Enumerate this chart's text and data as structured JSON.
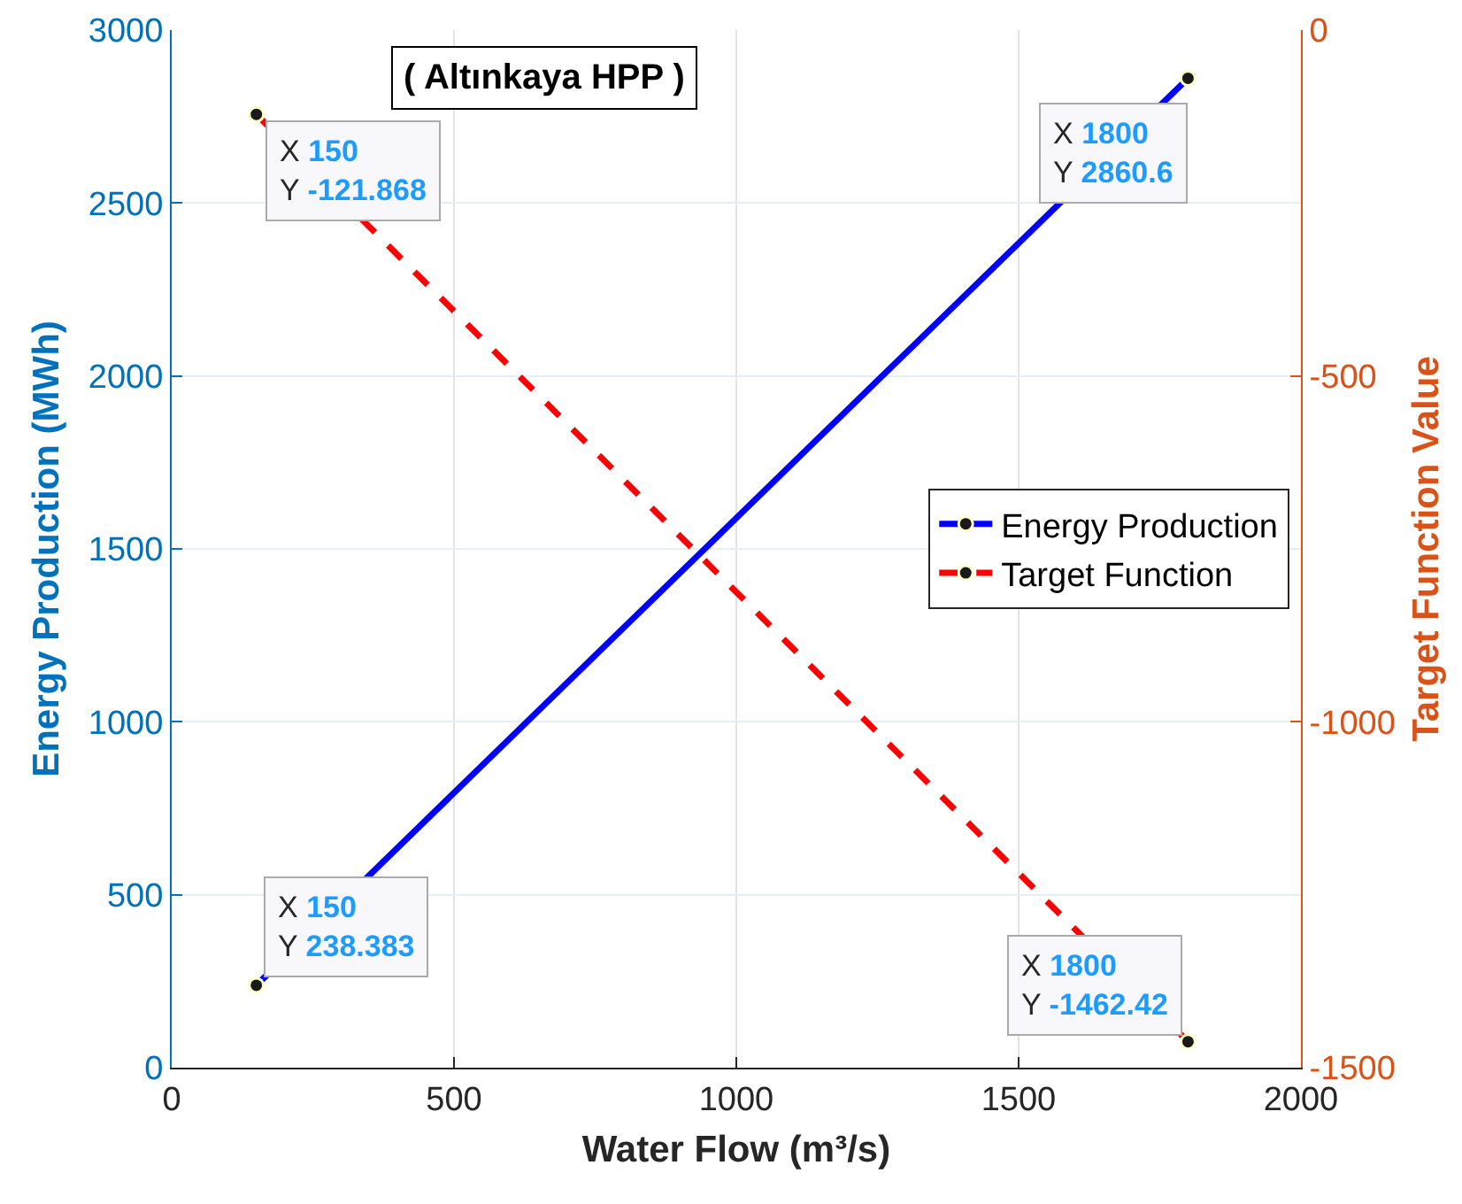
{
  "chart_data": {
    "type": "line",
    "title": "( Altınkaya HPP )",
    "xlabel": "Water Flow (m³/s)",
    "ylabel": "Energy Production (MWh)",
    "y2label": "Target Function Value",
    "x": [
      150,
      1800
    ],
    "series": [
      {
        "name": "Energy Production",
        "color": "#0000ff",
        "values": [
          238.383,
          2860.6
        ],
        "line_style": "solid"
      },
      {
        "name": "Target Function",
        "color": "#ff0000",
        "values": [
          -121.868,
          -1462.42
        ],
        "axis": "y2",
        "line_style": "dashed"
      }
    ],
    "xlim": [
      0,
      2000
    ],
    "xticks": [
      0,
      500,
      1000,
      1500,
      2000
    ],
    "ylim": [
      0,
      3000
    ],
    "yticks": [
      0,
      500,
      1000,
      1500,
      2000,
      2500,
      3000
    ],
    "y2lim": [
      -1500,
      0
    ],
    "y2ticks": [
      -1500,
      -1000,
      -500,
      0
    ],
    "annotations": [
      "X 150\nY -121.868",
      {
        "text": "X 1800\nY 2860.6",
        "x": 1800,
        "y": 2860.6
      },
      {
        "text": "X 150\nY 238.383",
        "x": 150,
        "y": 238.383
      },
      "X 1800\nY -1462.42"
    ],
    "grid": true,
    "legend": "right",
    "marker": "circle"
  }
}
